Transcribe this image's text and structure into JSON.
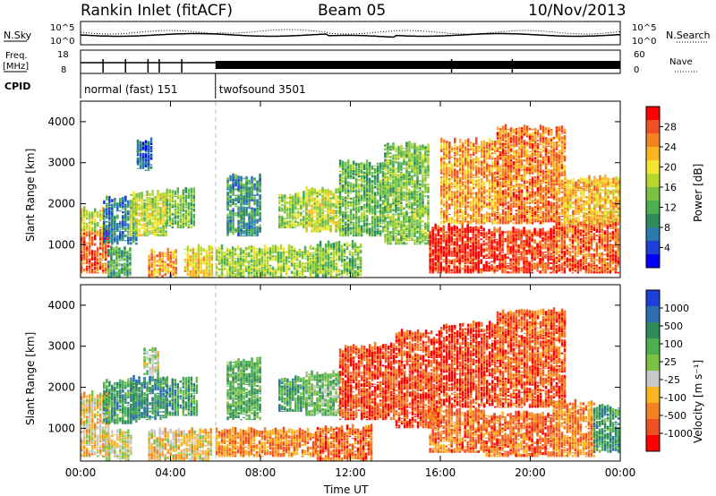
{
  "header": {
    "station": "Rankin Inlet (fitACF)",
    "beam": "Beam 05",
    "date": "10/Nov/2013"
  },
  "top_panels": {
    "nsky_label": "N.Sky",
    "nsky_ticks": [
      "10^5",
      "10^0"
    ],
    "nsearch_label": "N.Search",
    "nsearch_ticks": [
      "10^5",
      "10^0"
    ],
    "freq_label": "Freq.",
    "freq_unit": "[MHz]",
    "freq_ticks": [
      "18",
      "8"
    ],
    "nave_label": "Nave",
    "nave_ticks": [
      "60",
      "0"
    ],
    "cpid_label": "CPID",
    "cpid_segments": [
      {
        "name": "normal (fast) 151",
        "start_hour": 0,
        "end_hour": 6
      },
      {
        "name": "twofsound 3501",
        "start_hour": 6,
        "end_hour": 24
      }
    ]
  },
  "chart_data": [
    {
      "type": "heatmap",
      "panel": "power",
      "ylabel": "Slant Range [km]",
      "xlabel": "",
      "x_range_hours": [
        0,
        24
      ],
      "ylim": [
        200,
        4500
      ],
      "y_ticks": [
        1000,
        2000,
        3000,
        4000
      ],
      "x_ticks": [
        "00:00",
        "04:00",
        "08:00",
        "12:00",
        "16:00",
        "20:00",
        "00:00"
      ],
      "colorbar": {
        "label": "Power [dB]",
        "ticks": [
          "28",
          "24",
          "20",
          "16",
          "12",
          "8",
          "4"
        ],
        "colors": [
          "#0000ff",
          "#1d3fd9",
          "#2a7ab0",
          "#2e8c5a",
          "#4caf50",
          "#7cc242",
          "#b8d62a",
          "#f2e52b",
          "#fcb421",
          "#f58220",
          "#f04e23",
          "#ff0000"
        ]
      },
      "patches": [
        {
          "t0": 0.0,
          "t1": 1.2,
          "r0": 300,
          "r1": 1300,
          "level": 0.85
        },
        {
          "t0": 0.0,
          "t1": 1.0,
          "r0": 1300,
          "r1": 1800,
          "level": 0.55
        },
        {
          "t0": 1.2,
          "t1": 2.2,
          "r0": 200,
          "r1": 900,
          "level": 0.35
        },
        {
          "t0": 1.0,
          "t1": 2.5,
          "r0": 1000,
          "r1": 2100,
          "level": 0.25
        },
        {
          "t0": 2.2,
          "t1": 3.8,
          "r0": 1200,
          "r1": 2200,
          "level": 0.55
        },
        {
          "t0": 2.5,
          "t1": 3.2,
          "r0": 2800,
          "r1": 3500,
          "level": 0.2
        },
        {
          "t0": 3.0,
          "t1": 4.2,
          "r0": 200,
          "r1": 800,
          "level": 0.75
        },
        {
          "t0": 3.8,
          "t1": 5.0,
          "r0": 1400,
          "r1": 2300,
          "level": 0.45
        },
        {
          "t0": 4.6,
          "t1": 5.8,
          "r0": 200,
          "r1": 900,
          "level": 0.65
        },
        {
          "t0": 6.0,
          "t1": 10.5,
          "r0": 200,
          "r1": 900,
          "level": 0.5
        },
        {
          "t0": 6.5,
          "t1": 8.0,
          "r0": 1200,
          "r1": 2600,
          "level": 0.3
        },
        {
          "t0": 8.8,
          "t1": 10.0,
          "r0": 1400,
          "r1": 2200,
          "level": 0.5
        },
        {
          "t0": 10.0,
          "t1": 11.5,
          "r0": 1300,
          "r1": 2300,
          "level": 0.55
        },
        {
          "t0": 10.5,
          "t1": 12.5,
          "r0": 200,
          "r1": 1000,
          "level": 0.45
        },
        {
          "t0": 11.5,
          "t1": 13.5,
          "r0": 1200,
          "r1": 3000,
          "level": 0.4
        },
        {
          "t0": 13.5,
          "t1": 15.5,
          "r0": 1000,
          "r1": 3400,
          "level": 0.45
        },
        {
          "t0": 15.5,
          "t1": 18.0,
          "r0": 300,
          "r1": 1400,
          "level": 0.95
        },
        {
          "t0": 16.0,
          "t1": 18.5,
          "r0": 1500,
          "r1": 3500,
          "level": 0.75
        },
        {
          "t0": 18.0,
          "t1": 21.0,
          "r0": 300,
          "r1": 1300,
          "level": 0.9
        },
        {
          "t0": 18.5,
          "t1": 21.5,
          "r0": 1500,
          "r1": 3800,
          "level": 0.8
        },
        {
          "t0": 21.0,
          "t1": 24.0,
          "r0": 300,
          "r1": 1500,
          "level": 0.85
        },
        {
          "t0": 21.5,
          "t1": 24.0,
          "r0": 1500,
          "r1": 2600,
          "level": 0.7
        }
      ]
    },
    {
      "type": "heatmap",
      "panel": "velocity",
      "ylabel": "Slant Range [km]",
      "xlabel": "Time UT",
      "x_range_hours": [
        0,
        24
      ],
      "ylim": [
        200,
        4500
      ],
      "y_ticks": [
        1000,
        2000,
        3000,
        4000
      ],
      "x_ticks": [
        "00:00",
        "04:00",
        "08:00",
        "12:00",
        "16:00",
        "20:00",
        "00:00"
      ],
      "colorbar": {
        "label": "Velocity [m s⁻¹]",
        "ticks": [
          "1000",
          "500",
          "100",
          "25",
          "-25",
          "-100",
          "-500",
          "-1000"
        ],
        "colors": [
          "#ff0000",
          "#f04e23",
          "#f58220",
          "#fcb421",
          "#c8c8c8",
          "#7cc242",
          "#4caf50",
          "#2e8c5a",
          "#2a6fb0",
          "#1d3fd9"
        ]
      },
      "patches": [
        {
          "t0": 0.0,
          "t1": 1.2,
          "r0": 300,
          "r1": 1800,
          "level": 0.4
        },
        {
          "t0": 1.0,
          "t1": 2.2,
          "r0": 200,
          "r1": 900,
          "level": 0.45
        },
        {
          "t0": 1.0,
          "t1": 2.5,
          "r0": 1100,
          "r1": 2100,
          "level": 0.7
        },
        {
          "t0": 2.2,
          "t1": 3.8,
          "r0": 1200,
          "r1": 2200,
          "level": 0.75
        },
        {
          "t0": 2.8,
          "t1": 3.4,
          "r0": 2300,
          "r1": 2900,
          "level": 0.5
        },
        {
          "t0": 3.8,
          "t1": 5.2,
          "r0": 1300,
          "r1": 2200,
          "level": 0.7
        },
        {
          "t0": 3.0,
          "t1": 5.8,
          "r0": 200,
          "r1": 900,
          "level": 0.4
        },
        {
          "t0": 6.0,
          "t1": 10.5,
          "r0": 300,
          "r1": 900,
          "level": 0.25
        },
        {
          "t0": 6.5,
          "t1": 8.0,
          "r0": 1200,
          "r1": 2600,
          "level": 0.65
        },
        {
          "t0": 8.8,
          "t1": 10.0,
          "r0": 1400,
          "r1": 2200,
          "level": 0.7
        },
        {
          "t0": 10.0,
          "t1": 11.5,
          "r0": 1300,
          "r1": 2300,
          "level": 0.6
        },
        {
          "t0": 10.5,
          "t1": 13.0,
          "r0": 200,
          "r1": 1000,
          "level": 0.2
        },
        {
          "t0": 11.5,
          "t1": 14.0,
          "r0": 1200,
          "r1": 3000,
          "level": 0.15
        },
        {
          "t0": 14.0,
          "t1": 16.0,
          "r0": 1000,
          "r1": 3300,
          "level": 0.15
        },
        {
          "t0": 15.5,
          "t1": 18.0,
          "r0": 400,
          "r1": 1400,
          "level": 0.22
        },
        {
          "t0": 16.0,
          "t1": 18.5,
          "r0": 1500,
          "r1": 3500,
          "level": 0.12
        },
        {
          "t0": 18.0,
          "t1": 21.0,
          "r0": 300,
          "r1": 1300,
          "level": 0.2
        },
        {
          "t0": 18.5,
          "t1": 21.5,
          "r0": 1500,
          "r1": 3800,
          "level": 0.18
        },
        {
          "t0": 21.0,
          "t1": 22.8,
          "r0": 300,
          "r1": 1600,
          "level": 0.25
        },
        {
          "t0": 22.8,
          "t1": 24.0,
          "r0": 400,
          "r1": 1500,
          "level": 0.72
        }
      ]
    }
  ]
}
